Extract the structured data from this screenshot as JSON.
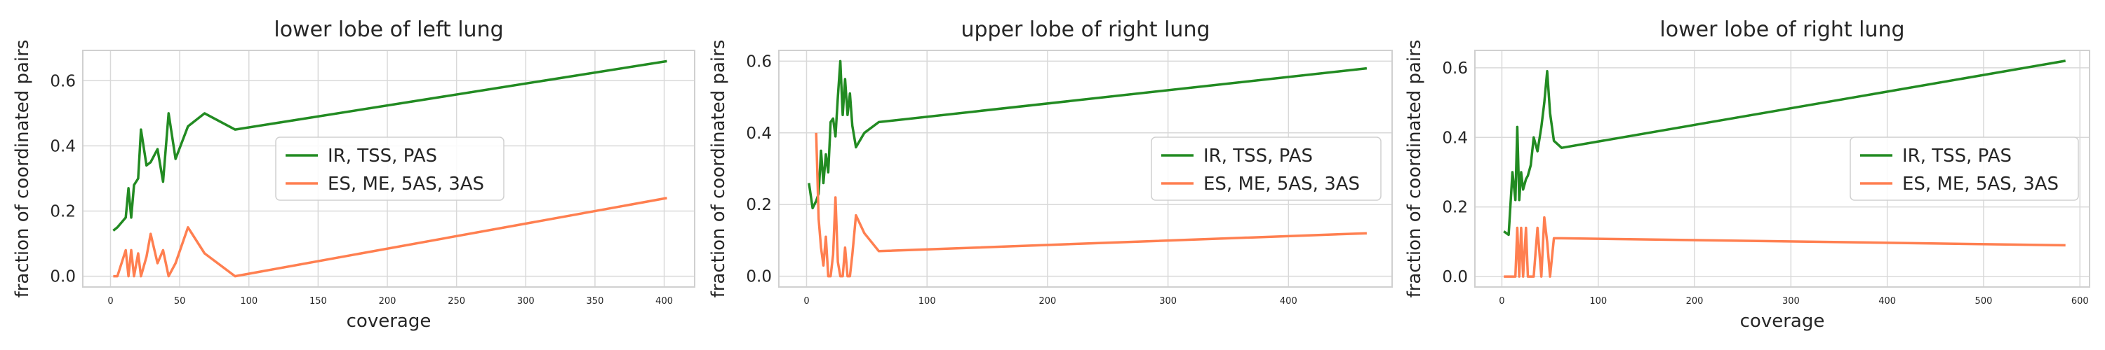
{
  "colors": {
    "series1": "#228B22",
    "series2": "#FF7F50",
    "grid": "#d9d9d9",
    "axes_edge": "#d0d0d0",
    "text": "#262626"
  },
  "chart_data": [
    {
      "type": "line",
      "title": "lower lobe of left lung",
      "xlabel": "coverage",
      "ylabel": "fraction of coordinated pairs",
      "xlim": [
        -20,
        422
      ],
      "ylim": [
        -0.033,
        0.693
      ],
      "xticks": [
        0,
        50,
        100,
        150,
        200,
        250,
        300,
        350,
        400
      ],
      "yticks": [
        0.0,
        0.2,
        0.4,
        0.6
      ],
      "legend": "center",
      "grid": true,
      "series": [
        {
          "name": "IR, TSS, PAS",
          "x": [
            2,
            5,
            11,
            13,
            15,
            17,
            20,
            22,
            26,
            29,
            34,
            38,
            42,
            47,
            56,
            68,
            90,
            402
          ],
          "y": [
            0.14,
            0.15,
            0.18,
            0.27,
            0.18,
            0.28,
            0.3,
            0.45,
            0.34,
            0.35,
            0.39,
            0.29,
            0.5,
            0.36,
            0.46,
            0.5,
            0.45,
            0.66
          ]
        },
        {
          "name": "ES, ME, 5AS, 3AS",
          "x": [
            2,
            5,
            11,
            13,
            15,
            17,
            20,
            22,
            26,
            29,
            34,
            38,
            42,
            47,
            56,
            68,
            90,
            402
          ],
          "y": [
            0.0,
            0.0,
            0.08,
            0.0,
            0.08,
            0.0,
            0.07,
            0.0,
            0.06,
            0.13,
            0.04,
            0.08,
            0.0,
            0.04,
            0.15,
            0.07,
            0.0,
            0.24
          ]
        }
      ]
    },
    {
      "type": "line",
      "title": "upper lobe of right lung",
      "xlabel": "",
      "ylabel": "fraction of coordinated pairs",
      "xlim": [
        -23,
        486
      ],
      "ylim": [
        -0.03,
        0.63
      ],
      "xticks": [
        0,
        100,
        200,
        300,
        400
      ],
      "yticks": [
        0.0,
        0.2,
        0.4,
        0.6
      ],
      "legend": "center right",
      "grid": true,
      "series": [
        {
          "name": "IR, TSS, PAS",
          "x": [
            2,
            5,
            8,
            10,
            12,
            14,
            16,
            18,
            20,
            22,
            24,
            26,
            28,
            30,
            32,
            34,
            36,
            38,
            41,
            48,
            60,
            465
          ],
          "y": [
            0.26,
            0.19,
            0.21,
            0.23,
            0.35,
            0.26,
            0.34,
            0.29,
            0.43,
            0.44,
            0.39,
            0.5,
            0.6,
            0.45,
            0.55,
            0.45,
            0.51,
            0.42,
            0.36,
            0.4,
            0.43,
            0.58
          ]
        },
        {
          "name": "ES, ME, 5AS, 3AS",
          "x": [
            8,
            10,
            12,
            14,
            16,
            18,
            20,
            22,
            24,
            26,
            28,
            30,
            32,
            34,
            36,
            38,
            41,
            48,
            60,
            465
          ],
          "y": [
            0.4,
            0.16,
            0.08,
            0.03,
            0.11,
            0.0,
            0.0,
            0.06,
            0.22,
            0.04,
            0.0,
            0.0,
            0.08,
            0.0,
            0.0,
            0.06,
            0.17,
            0.12,
            0.07,
            0.12
          ]
        }
      ]
    },
    {
      "type": "line",
      "title": "lower lobe of right lung",
      "xlabel": "coverage",
      "ylabel": "fraction of coordinated pairs",
      "xlim": [
        -28,
        610
      ],
      "ylim": [
        -0.03,
        0.65
      ],
      "xticks": [
        0,
        100,
        200,
        300,
        400,
        500,
        600
      ],
      "yticks": [
        0.0,
        0.2,
        0.4,
        0.6
      ],
      "legend": "center right",
      "grid": true,
      "series": [
        {
          "name": "IR, TSS, PAS",
          "x": [
            2,
            7,
            11,
            14,
            16,
            18,
            20,
            22,
            25,
            27,
            30,
            33,
            37,
            41,
            44,
            47,
            50,
            54,
            62,
            585
          ],
          "y": [
            0.13,
            0.12,
            0.3,
            0.22,
            0.43,
            0.22,
            0.3,
            0.25,
            0.28,
            0.29,
            0.32,
            0.4,
            0.36,
            0.43,
            0.5,
            0.59,
            0.47,
            0.39,
            0.37,
            0.62
          ]
        },
        {
          "name": "ES, ME, 5AS, 3AS",
          "x": [
            2,
            7,
            11,
            14,
            16,
            18,
            20,
            22,
            25,
            27,
            30,
            33,
            37,
            41,
            44,
            47,
            50,
            54,
            62,
            585
          ],
          "y": [
            0.0,
            0.0,
            0.0,
            0.0,
            0.14,
            0.0,
            0.14,
            0.0,
            0.14,
            0.0,
            0.0,
            0.0,
            0.14,
            0.0,
            0.17,
            0.1,
            0.0,
            0.11,
            0.11,
            0.09
          ]
        }
      ]
    }
  ]
}
